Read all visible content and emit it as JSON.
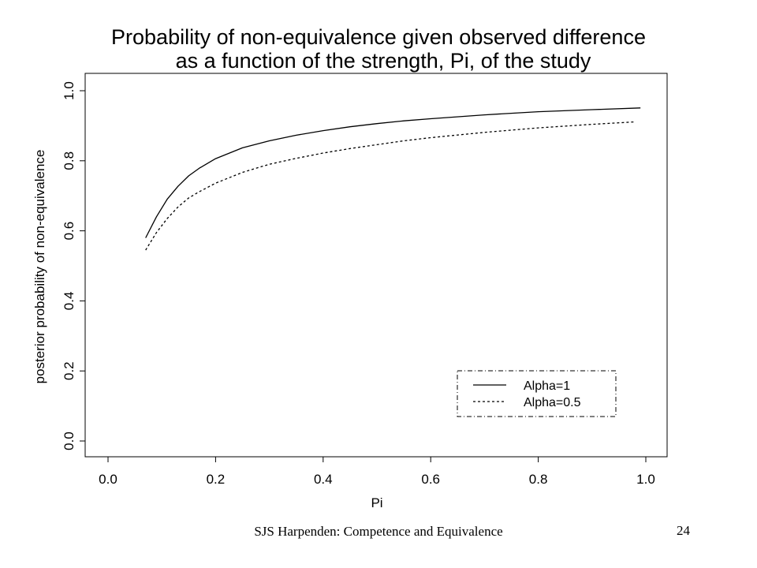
{
  "chart_data": {
    "type": "line",
    "title_lines": [
      "Probability of non-equivalence given observed difference",
      "as a function of the strength, Pi, of the study"
    ],
    "xlabel": "Pi",
    "ylabel": "posterior probability of non-equivalence",
    "xlim": [
      0.0,
      1.0
    ],
    "ylim": [
      0.0,
      1.0
    ],
    "xticks": [
      "0.0",
      "0.2",
      "0.4",
      "0.6",
      "0.8",
      "1.0"
    ],
    "yticks": [
      "0.0",
      "0.2",
      "0.4",
      "0.6",
      "0.8",
      "1.0"
    ],
    "grid": false,
    "legend_position": "bottom-right",
    "series": [
      {
        "name": "Alpha=1",
        "line_style": "solid",
        "x": [
          0.07,
          0.09,
          0.11,
          0.13,
          0.15,
          0.17,
          0.2,
          0.25,
          0.3,
          0.35,
          0.4,
          0.45,
          0.5,
          0.55,
          0.6,
          0.7,
          0.8,
          0.9,
          0.99
        ],
        "y": [
          0.58,
          0.64,
          0.69,
          0.727,
          0.757,
          0.779,
          0.806,
          0.837,
          0.857,
          0.873,
          0.886,
          0.897,
          0.906,
          0.914,
          0.92,
          0.931,
          0.94,
          0.946,
          0.951
        ]
      },
      {
        "name": "Alpha=0.5",
        "line_style": "dashed",
        "x": [
          0.07,
          0.09,
          0.11,
          0.13,
          0.15,
          0.17,
          0.2,
          0.25,
          0.3,
          0.35,
          0.4,
          0.45,
          0.5,
          0.55,
          0.6,
          0.7,
          0.8,
          0.9,
          0.98
        ],
        "y": [
          0.545,
          0.595,
          0.635,
          0.668,
          0.694,
          0.712,
          0.736,
          0.767,
          0.79,
          0.807,
          0.822,
          0.835,
          0.846,
          0.857,
          0.866,
          0.881,
          0.894,
          0.904,
          0.911
        ]
      }
    ]
  },
  "footer": {
    "left": "SJS Harpenden: Competence and Equivalence",
    "right": "24"
  }
}
